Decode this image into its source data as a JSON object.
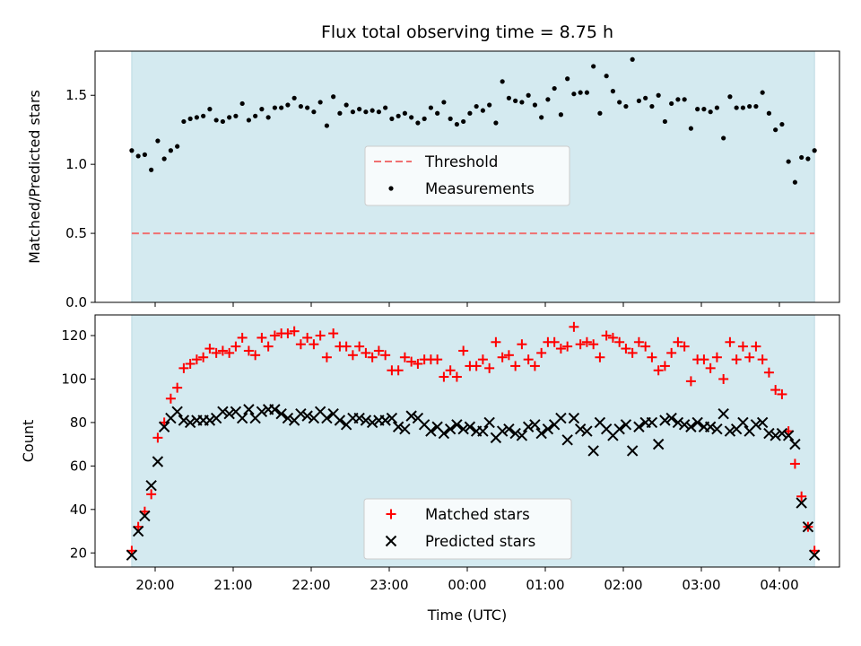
{
  "chart_data": {
    "title": "Flux total observing time = 8.75 h",
    "xlabel": "Time (UTC)",
    "x_tick_labels": [
      "20:00",
      "21:00",
      "22:00",
      "23:00",
      "00:00",
      "01:00",
      "02:00",
      "03:00",
      "04:00"
    ],
    "x_tick_hours": [
      0,
      1,
      2,
      3,
      4,
      5,
      6,
      7,
      8
    ],
    "x_range_hours_from_2000": [
      -0.77,
      8.77
    ],
    "observing_window_hours_from_2000": [
      -0.3,
      8.45
    ],
    "window_color": "#d4eaf0",
    "top": {
      "type": "scatter",
      "ylabel": "Matched/Predicted stars",
      "ylim": [
        0.0,
        1.82
      ],
      "y_ticks": [
        0.0,
        0.5,
        1.0,
        1.5
      ],
      "y_tick_labels": [
        "0.0",
        "0.5",
        "1.0",
        "1.5"
      ],
      "threshold": 0.5,
      "threshold_color": "#f07070",
      "legend": {
        "position": "center",
        "threshold_label": "Threshold",
        "measurements_label": "Measurements"
      },
      "measurements": [
        1.1,
        1.06,
        1.07,
        0.96,
        1.17,
        1.04,
        1.1,
        1.13,
        1.31,
        1.33,
        1.34,
        1.35,
        1.4,
        1.32,
        1.31,
        1.34,
        1.35,
        1.44,
        1.32,
        1.35,
        1.4,
        1.34,
        1.41,
        1.41,
        1.43,
        1.48,
        1.42,
        1.41,
        1.38,
        1.45,
        1.28,
        1.49,
        1.37,
        1.43,
        1.38,
        1.4,
        1.38,
        1.39,
        1.38,
        1.41,
        1.33,
        1.35,
        1.37,
        1.34,
        1.3,
        1.33,
        1.41,
        1.37,
        1.45,
        1.33,
        1.29,
        1.31,
        1.37,
        1.42,
        1.39,
        1.43,
        1.3,
        1.6,
        1.48,
        1.46,
        1.45,
        1.5,
        1.43,
        1.34,
        1.47,
        1.55,
        1.36,
        1.62,
        1.51,
        1.52,
        1.52,
        1.71,
        1.37,
        1.64,
        1.53,
        1.45,
        1.42,
        1.76,
        1.46,
        1.48,
        1.42,
        1.5,
        1.31,
        1.44,
        1.47,
        1.47,
        1.26,
        1.4,
        1.4,
        1.38,
        1.41,
        1.19,
        1.49,
        1.41,
        1.41,
        1.42,
        1.42,
        1.52,
        1.37,
        1.25,
        1.29,
        1.02,
        0.87,
        1.05,
        1.04,
        1.1
      ]
    },
    "bottom": {
      "type": "scatter",
      "ylabel": "Count",
      "ylim": [
        13.5,
        129.5
      ],
      "y_ticks": [
        20,
        40,
        60,
        80,
        100,
        120
      ],
      "y_tick_labels": [
        "20",
        "40",
        "60",
        "80",
        "100",
        "120"
      ],
      "legend": {
        "position": "lower-center"
      },
      "series": [
        {
          "name": "Matched stars",
          "marker": "plus",
          "color": "#ff0000",
          "values": [
            21,
            32,
            39,
            47,
            73,
            80,
            91,
            96,
            105,
            107,
            109,
            110,
            114,
            112,
            113,
            112,
            115,
            119,
            113,
            111,
            119,
            115,
            120,
            121,
            121,
            122,
            116,
            119,
            116,
            120,
            110,
            121,
            115,
            115,
            111,
            115,
            112,
            110,
            113,
            111,
            104,
            104,
            110,
            108,
            107,
            109,
            109,
            109,
            101,
            104,
            101,
            113,
            106,
            106,
            109,
            105,
            117,
            110,
            111,
            106,
            116,
            109,
            106,
            112,
            117,
            117,
            114,
            115,
            124,
            116,
            117,
            116,
            110,
            120,
            119,
            117,
            114,
            112,
            117,
            115,
            110,
            104,
            106,
            112,
            117,
            115,
            99,
            109,
            109,
            105,
            110,
            100,
            117,
            109,
            115,
            110,
            115,
            109,
            103,
            95,
            93,
            76,
            61,
            46,
            32,
            21
          ]
        },
        {
          "name": "Predicted stars",
          "marker": "x",
          "color": "#000000",
          "values": [
            19,
            30,
            37,
            51,
            62,
            78,
            82,
            85,
            81,
            80,
            81,
            81,
            81,
            82,
            85,
            84,
            85,
            82,
            86,
            82,
            85,
            86,
            86,
            84,
            82,
            81,
            84,
            83,
            82,
            85,
            82,
            84,
            81,
            79,
            82,
            82,
            81,
            80,
            81,
            81,
            82,
            78,
            77,
            83,
            82,
            79,
            76,
            78,
            75,
            77,
            79,
            77,
            78,
            76,
            76,
            80,
            73,
            76,
            77,
            75,
            74,
            78,
            79,
            75,
            77,
            79,
            82,
            72,
            82,
            77,
            76,
            67,
            80,
            77,
            74,
            77,
            79,
            67,
            78,
            80,
            80,
            70,
            81,
            82,
            80,
            79,
            78,
            80,
            78,
            78,
            77,
            84,
            76,
            77,
            80,
            76,
            79,
            80,
            75,
            74,
            75,
            74,
            70,
            43,
            32,
            19
          ]
        }
      ]
    }
  }
}
